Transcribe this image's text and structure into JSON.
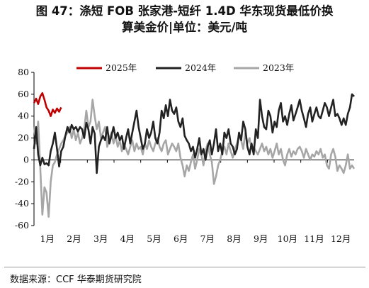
{
  "title": {
    "line1": "图 47：涤短 FOB 张家港-短纤 1.4D 华东现货最低价换",
    "line2": "算美金价|单位：美元/吨"
  },
  "source": "数据来源：CCF  华泰期货研究院",
  "chart_data": {
    "type": "line",
    "xlabel": "",
    "ylabel": "",
    "ylim": [
      -60,
      80
    ],
    "yticks": [
      80,
      60,
      40,
      20,
      0,
      -20,
      -40,
      -60
    ],
    "xticks": [
      "1月",
      "2月",
      "3月",
      "4月",
      "5月",
      "6月",
      "7月",
      "8月",
      "9月",
      "10月",
      "11月",
      "12月"
    ],
    "legend_position": "top",
    "grid": false,
    "series": [
      {
        "name": "2025年",
        "color": "#c00000",
        "points": [
          [
            1,
            52
          ],
          [
            2,
            56
          ],
          [
            3,
            51
          ],
          [
            4,
            58
          ],
          [
            5,
            61
          ],
          [
            6,
            55
          ],
          [
            7,
            48
          ],
          [
            8,
            45
          ],
          [
            9,
            40
          ],
          [
            10,
            46
          ],
          [
            11,
            43
          ],
          [
            12,
            47
          ],
          [
            13,
            44
          ],
          [
            14,
            48
          ]
        ]
      },
      {
        "name": "2024年",
        "color": "#222222",
        "points": [
          [
            1,
            10
          ],
          [
            2,
            30
          ],
          [
            3,
            5
          ],
          [
            4,
            -5
          ],
          [
            5,
            2
          ],
          [
            6,
            -4
          ],
          [
            7,
            -3
          ],
          [
            8,
            -5
          ],
          [
            9,
            8
          ],
          [
            10,
            15
          ],
          [
            11,
            25
          ],
          [
            12,
            10
          ],
          [
            13,
            -6
          ],
          [
            14,
            8
          ],
          [
            15,
            12
          ],
          [
            16,
            22
          ],
          [
            17,
            30
          ],
          [
            18,
            25
          ],
          [
            19,
            32
          ],
          [
            20,
            28
          ],
          [
            21,
            30
          ],
          [
            22,
            26
          ],
          [
            23,
            30
          ],
          [
            24,
            28
          ],
          [
            25,
            20
          ],
          [
            26,
            34
          ],
          [
            27,
            28
          ],
          [
            28,
            15
          ],
          [
            29,
            30
          ],
          [
            30,
            24
          ],
          [
            31,
            -12
          ],
          [
            32,
            12
          ],
          [
            33,
            18
          ],
          [
            34,
            22
          ],
          [
            35,
            18
          ],
          [
            36,
            30
          ],
          [
            37,
            15
          ],
          [
            38,
            22
          ],
          [
            39,
            30
          ],
          [
            40,
            20
          ],
          [
            41,
            25
          ],
          [
            42,
            18
          ],
          [
            43,
            22
          ],
          [
            44,
            10
          ],
          [
            45,
            20
          ],
          [
            46,
            28
          ],
          [
            47,
            15
          ],
          [
            48,
            25
          ],
          [
            49,
            35
          ],
          [
            50,
            45
          ],
          [
            51,
            30
          ],
          [
            52,
            20
          ],
          [
            53,
            10
          ],
          [
            54,
            15
          ],
          [
            55,
            28
          ],
          [
            56,
            20
          ],
          [
            57,
            25
          ],
          [
            58,
            35
          ],
          [
            59,
            20
          ],
          [
            60,
            15
          ],
          [
            61,
            25
          ],
          [
            62,
            45
          ],
          [
            63,
            38
          ],
          [
            64,
            50
          ],
          [
            65,
            40
          ],
          [
            66,
            55
          ],
          [
            67,
            45
          ],
          [
            68,
            42
          ],
          [
            69,
            48
          ],
          [
            70,
            35
          ],
          [
            71,
            30
          ],
          [
            72,
            38
          ],
          [
            73,
            22
          ],
          [
            74,
            18
          ],
          [
            75,
            15
          ],
          [
            76,
            8
          ],
          [
            77,
            12
          ],
          [
            78,
            2
          ],
          [
            79,
            10
          ],
          [
            80,
            20
          ],
          [
            81,
            5
          ],
          [
            82,
            10
          ],
          [
            83,
            0
          ],
          [
            84,
            12
          ],
          [
            85,
            18
          ],
          [
            86,
            5
          ],
          [
            87,
            15
          ],
          [
            88,
            28
          ],
          [
            89,
            8
          ],
          [
            90,
            15
          ],
          [
            91,
            5
          ],
          [
            92,
            25
          ],
          [
            93,
            20
          ],
          [
            94,
            28
          ],
          [
            95,
            15
          ],
          [
            96,
            12
          ],
          [
            97,
            5
          ],
          [
            98,
            10
          ],
          [
            99,
            25
          ],
          [
            100,
            18
          ],
          [
            101,
            35
          ],
          [
            102,
            28
          ],
          [
            103,
            12
          ],
          [
            104,
            5
          ],
          [
            105,
            15
          ],
          [
            106,
            5
          ],
          [
            107,
            28
          ],
          [
            108,
            20
          ],
          [
            109,
            55
          ],
          [
            110,
            40
          ],
          [
            111,
            30
          ],
          [
            112,
            28
          ],
          [
            113,
            45
          ],
          [
            114,
            40
          ],
          [
            115,
            25
          ],
          [
            116,
            35
          ],
          [
            117,
            30
          ],
          [
            118,
            45
          ],
          [
            119,
            52
          ],
          [
            120,
            35
          ],
          [
            121,
            40
          ],
          [
            122,
            32
          ],
          [
            123,
            42
          ],
          [
            124,
            50
          ],
          [
            125,
            36
          ],
          [
            126,
            42
          ],
          [
            127,
            48
          ],
          [
            128,
            55
          ],
          [
            129,
            45
          ],
          [
            130,
            38
          ],
          [
            131,
            30
          ],
          [
            132,
            42
          ],
          [
            133,
            48
          ],
          [
            134,
            35
          ],
          [
            135,
            42
          ],
          [
            136,
            48
          ],
          [
            137,
            40
          ],
          [
            138,
            38
          ],
          [
            139,
            45
          ],
          [
            140,
            52
          ],
          [
            141,
            48
          ],
          [
            142,
            40
          ],
          [
            143,
            48
          ],
          [
            144,
            55
          ],
          [
            145,
            40
          ],
          [
            146,
            42
          ],
          [
            147,
            38
          ],
          [
            148,
            32
          ],
          [
            149,
            38
          ],
          [
            150,
            32
          ],
          [
            151,
            42
          ],
          [
            152,
            48
          ],
          [
            153,
            60
          ],
          [
            154,
            58
          ]
        ]
      },
      {
        "name": "2023年",
        "color": "#a6a6a6",
        "points": [
          [
            1,
            30
          ],
          [
            2,
            15
          ],
          [
            3,
            35
          ],
          [
            4,
            -8
          ],
          [
            5,
            -50
          ],
          [
            6,
            -25
          ],
          [
            7,
            -30
          ],
          [
            8,
            -52
          ],
          [
            9,
            -20
          ],
          [
            10,
            -5
          ],
          [
            11,
            -2
          ],
          [
            12,
            5
          ],
          [
            13,
            10
          ],
          [
            14,
            15
          ],
          [
            15,
            18
          ],
          [
            16,
            22
          ],
          [
            17,
            25
          ],
          [
            18,
            30
          ],
          [
            19,
            20
          ],
          [
            20,
            28
          ],
          [
            21,
            18
          ],
          [
            22,
            25
          ],
          [
            23,
            15
          ],
          [
            24,
            20
          ],
          [
            25,
            28
          ],
          [
            26,
            45
          ],
          [
            27,
            30
          ],
          [
            28,
            35
          ],
          [
            29,
            55
          ],
          [
            30,
            40
          ],
          [
            31,
            28
          ],
          [
            32,
            35
          ],
          [
            33,
            20
          ],
          [
            34,
            25
          ],
          [
            35,
            30
          ],
          [
            36,
            12
          ],
          [
            37,
            20
          ],
          [
            38,
            25
          ],
          [
            39,
            15
          ],
          [
            40,
            22
          ],
          [
            41,
            12
          ],
          [
            42,
            18
          ],
          [
            43,
            8
          ],
          [
            44,
            15
          ],
          [
            45,
            10
          ],
          [
            46,
            5
          ],
          [
            47,
            12
          ],
          [
            48,
            18
          ],
          [
            49,
            8
          ],
          [
            50,
            15
          ],
          [
            51,
            10
          ],
          [
            52,
            12
          ],
          [
            53,
            5
          ],
          [
            54,
            15
          ],
          [
            55,
            10
          ],
          [
            56,
            18
          ],
          [
            57,
            12
          ],
          [
            58,
            8
          ],
          [
            59,
            15
          ],
          [
            60,
            20
          ],
          [
            61,
            12
          ],
          [
            62,
            8
          ],
          [
            63,
            15
          ],
          [
            64,
            18
          ],
          [
            65,
            5
          ],
          [
            66,
            10
          ],
          [
            67,
            15
          ],
          [
            68,
            12
          ],
          [
            69,
            8
          ],
          [
            70,
            15
          ],
          [
            71,
            2
          ],
          [
            72,
            -5
          ],
          [
            73,
            -15
          ],
          [
            74,
            -5
          ],
          [
            75,
            -10
          ],
          [
            76,
            -2
          ],
          [
            77,
            5
          ],
          [
            78,
            -8
          ],
          [
            79,
            0
          ],
          [
            80,
            10
          ],
          [
            81,
            5
          ],
          [
            82,
            -5
          ],
          [
            83,
            8
          ],
          [
            84,
            15
          ],
          [
            85,
            5
          ],
          [
            86,
            -2
          ],
          [
            87,
            -22
          ],
          [
            88,
            -15
          ],
          [
            89,
            -5
          ],
          [
            90,
            0
          ],
          [
            91,
            8
          ],
          [
            92,
            12
          ],
          [
            93,
            5
          ],
          [
            94,
            15
          ],
          [
            95,
            8
          ],
          [
            96,
            2
          ],
          [
            97,
            10
          ],
          [
            98,
            15
          ],
          [
            99,
            22
          ],
          [
            100,
            18
          ],
          [
            101,
            10
          ],
          [
            102,
            25
          ],
          [
            103,
            15
          ],
          [
            104,
            20
          ],
          [
            105,
            10
          ],
          [
            106,
            12
          ],
          [
            107,
            8
          ],
          [
            108,
            5
          ],
          [
            109,
            10
          ],
          [
            110,
            15
          ],
          [
            111,
            8
          ],
          [
            112,
            12
          ],
          [
            113,
            5
          ],
          [
            114,
            10
          ],
          [
            115,
            2
          ],
          [
            116,
            8
          ],
          [
            117,
            15
          ],
          [
            118,
            5
          ],
          [
            119,
            10
          ],
          [
            120,
            0
          ],
          [
            121,
            -5
          ],
          [
            122,
            5
          ],
          [
            123,
            10
          ],
          [
            124,
            3
          ],
          [
            125,
            8
          ],
          [
            126,
            5
          ],
          [
            127,
            10
          ],
          [
            128,
            12
          ],
          [
            129,
            8
          ],
          [
            130,
            2
          ],
          [
            131,
            10
          ],
          [
            132,
            5
          ],
          [
            133,
            0
          ],
          [
            134,
            5
          ],
          [
            135,
            3
          ],
          [
            136,
            8
          ],
          [
            137,
            5
          ],
          [
            138,
            10
          ],
          [
            139,
            2
          ],
          [
            140,
            5
          ],
          [
            141,
            -5
          ],
          [
            142,
            -8
          ],
          [
            143,
            5
          ],
          [
            144,
            10
          ],
          [
            145,
            3
          ],
          [
            146,
            -10
          ],
          [
            147,
            -5
          ],
          [
            148,
            -8
          ],
          [
            149,
            -12
          ],
          [
            150,
            -5
          ],
          [
            151,
            5
          ],
          [
            152,
            -8
          ],
          [
            153,
            -5
          ],
          [
            154,
            -8
          ]
        ]
      }
    ]
  }
}
